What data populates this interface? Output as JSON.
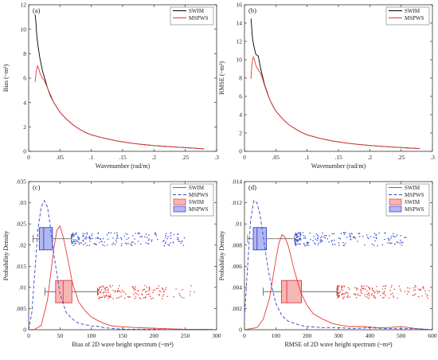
{
  "chart_data": [
    {
      "panel": "(a)",
      "type": "line",
      "xlabel": "Wavenumber (rad/m)",
      "ylabel": "Bias (~m³)",
      "xlim": [
        0,
        0.3
      ],
      "ylim": [
        0,
        12
      ],
      "xticks": [
        0,
        0.05,
        0.1,
        0.15,
        0.2,
        0.25,
        0.3
      ],
      "yticks": [
        0,
        2,
        4,
        6,
        8,
        10,
        12
      ],
      "legend": "top-right",
      "series": [
        {
          "name": "SWIM",
          "color": "#000000",
          "x": [
            0.0103,
            0.0115,
            0.013,
            0.015,
            0.018,
            0.022,
            0.026,
            0.03,
            0.035,
            0.04,
            0.045,
            0.05,
            0.06,
            0.07,
            0.08,
            0.09,
            0.1,
            0.12,
            0.14,
            0.16,
            0.18,
            0.2,
            0.22,
            0.24,
            0.26,
            0.28
          ],
          "y": [
            11.2,
            10.6,
            9.5,
            8.6,
            7.6,
            6.6,
            5.9,
            5.2,
            4.5,
            4.0,
            3.6,
            3.2,
            2.65,
            2.2,
            1.85,
            1.55,
            1.35,
            1.08,
            0.86,
            0.7,
            0.57,
            0.47,
            0.4,
            0.33,
            0.27,
            0.2
          ]
        },
        {
          "name": "MSPWS",
          "color": "#e53935",
          "x": [
            0.0103,
            0.012,
            0.014,
            0.016,
            0.018,
            0.02,
            0.022,
            0.025,
            0.03,
            0.035,
            0.04,
            0.045,
            0.05,
            0.06,
            0.07,
            0.08,
            0.09,
            0.1,
            0.12,
            0.14,
            0.16,
            0.18,
            0.2,
            0.22,
            0.24,
            0.26,
            0.28
          ],
          "y": [
            5.7,
            6.5,
            7.0,
            6.8,
            6.4,
            6.2,
            6.0,
            5.8,
            5.2,
            4.6,
            4.0,
            3.6,
            3.2,
            2.65,
            2.2,
            1.85,
            1.55,
            1.35,
            1.08,
            0.86,
            0.7,
            0.57,
            0.47,
            0.4,
            0.33,
            0.27,
            0.2
          ]
        }
      ]
    },
    {
      "panel": "(b)",
      "type": "line",
      "xlabel": "Wavenumber (rad/m)",
      "ylabel": "RMSE (~m³)",
      "xlim": [
        0,
        0.3
      ],
      "ylim": [
        0,
        16
      ],
      "xticks": [
        0,
        0.05,
        0.1,
        0.15,
        0.2,
        0.25,
        0.3
      ],
      "yticks": [
        0,
        2,
        4,
        6,
        8,
        10,
        12,
        14,
        16
      ],
      "legend": "top-right",
      "series": [
        {
          "name": "SWIM",
          "color": "#000000",
          "x": [
            0.0103,
            0.0115,
            0.013,
            0.015,
            0.018,
            0.022,
            0.025,
            0.028,
            0.032,
            0.036,
            0.04,
            0.045,
            0.05,
            0.06,
            0.07,
            0.08,
            0.09,
            0.1,
            0.12,
            0.14,
            0.16,
            0.18,
            0.2,
            0.22,
            0.24,
            0.26,
            0.28
          ],
          "y": [
            14.5,
            13.5,
            12.2,
            11.5,
            10.6,
            10.4,
            9.3,
            8.4,
            7.3,
            6.5,
            5.7,
            5.0,
            4.4,
            3.6,
            2.95,
            2.5,
            2.1,
            1.8,
            1.42,
            1.14,
            0.93,
            0.77,
            0.64,
            0.54,
            0.45,
            0.37,
            0.3
          ]
        },
        {
          "name": "MSPWS",
          "color": "#e53935",
          "x": [
            0.0103,
            0.012,
            0.014,
            0.016,
            0.018,
            0.02,
            0.022,
            0.025,
            0.028,
            0.032,
            0.036,
            0.04,
            0.045,
            0.05,
            0.06,
            0.07,
            0.08,
            0.09,
            0.1,
            0.12,
            0.14,
            0.16,
            0.18,
            0.2,
            0.22,
            0.24,
            0.26,
            0.28
          ],
          "y": [
            7.9,
            9.6,
            10.3,
            10.0,
            9.4,
            9.1,
            8.9,
            8.6,
            8.1,
            7.2,
            6.4,
            5.7,
            5.0,
            4.4,
            3.6,
            2.95,
            2.5,
            2.1,
            1.8,
            1.42,
            1.14,
            0.93,
            0.77,
            0.64,
            0.54,
            0.45,
            0.37,
            0.3
          ]
        }
      ]
    },
    {
      "panel": "(c)",
      "type": "line",
      "xlabel": "Bias of 2D wave height spectrum (~m⁴)",
      "ylabel": "Probability Density",
      "xlim": [
        0,
        300
      ],
      "ylim": [
        0,
        0.035
      ],
      "xticks": [
        0,
        50,
        100,
        150,
        200,
        250,
        300
      ],
      "yticks": [
        0,
        0.005,
        0.01,
        0.015,
        0.02,
        0.025,
        0.03,
        0.035
      ],
      "legend": "top-right",
      "series": [
        {
          "name": "SWIM",
          "color": "#e53935",
          "style": "solid",
          "x": [
            0,
            10,
            20,
            30,
            40,
            45,
            50,
            55,
            60,
            70,
            80,
            90,
            100,
            110,
            120,
            130,
            140,
            150,
            170,
            190,
            210,
            230,
            250,
            270,
            290,
            300
          ],
          "y": [
            0.0,
            0.0001,
            0.001,
            0.007,
            0.019,
            0.0235,
            0.0245,
            0.022,
            0.0185,
            0.011,
            0.0065,
            0.0045,
            0.003,
            0.0022,
            0.0015,
            0.001,
            0.0008,
            0.0007,
            0.0005,
            0.0004,
            0.0003,
            0.0002,
            0.0001,
            0.0001,
            0.0001,
            0.0
          ]
        },
        {
          "name": "MSPWS",
          "color": "#3344cc",
          "style": "dashed",
          "x": [
            0,
            5,
            10,
            15,
            20,
            25,
            30,
            35,
            40,
            50,
            60,
            70,
            80,
            90,
            100,
            110,
            120,
            140,
            160,
            200,
            250,
            300
          ],
          "y": [
            0.0,
            0.004,
            0.014,
            0.024,
            0.029,
            0.0305,
            0.029,
            0.024,
            0.018,
            0.0085,
            0.004,
            0.0025,
            0.0015,
            0.0012,
            0.0009,
            0.0008,
            0.0005,
            0.0002,
            0.0001,
            0.0001,
            0.0,
            0.0
          ]
        }
      ],
      "boxplots": [
        {
          "name": "SWIM",
          "color": "#e53935",
          "fill": "#f6b6b6",
          "y_level": 0.009,
          "whisker_low": 26,
          "q1": 43,
          "median": 55,
          "q3": 69,
          "whisker_high": 110,
          "scatter_range": [
            110,
            265
          ],
          "scatter_count": 150
        },
        {
          "name": "MSPWS",
          "color": "#3344cc",
          "fill": "#b3b8f2",
          "y_level": 0.0215,
          "whisker_low": 7,
          "q1": 17,
          "median": 24,
          "q3": 38,
          "whisker_high": 68,
          "scatter_range": [
            68,
            250
          ],
          "scatter_count": 180
        }
      ]
    },
    {
      "panel": "(d)",
      "type": "line",
      "xlabel": "RMSE of 2D wave height spectrum (~m⁴)",
      "ylabel": "Probability Density",
      "xlim": [
        0,
        600
      ],
      "ylim": [
        0,
        0.014
      ],
      "xticks": [
        0,
        100,
        200,
        300,
        400,
        500,
        600
      ],
      "yticks": [
        0,
        0.002,
        0.004,
        0.006,
        0.008,
        0.01,
        0.012,
        0.014
      ],
      "legend": "top-right",
      "series": [
        {
          "name": "SWIM",
          "color": "#e53935",
          "style": "solid",
          "x": [
            0,
            40,
            60,
            80,
            100,
            110,
            120,
            130,
            140,
            160,
            180,
            200,
            220,
            250,
            280,
            310,
            340,
            380,
            420,
            460,
            500,
            550,
            600
          ],
          "y": [
            0.0,
            0.0002,
            0.001,
            0.003,
            0.0066,
            0.0082,
            0.009,
            0.0087,
            0.0079,
            0.0055,
            0.0035,
            0.0023,
            0.0015,
            0.001,
            0.0006,
            0.0004,
            0.0003,
            0.0003,
            0.0002,
            0.0002,
            0.0003,
            0.0001,
            0.0
          ]
        },
        {
          "name": "MSPWS",
          "color": "#3344cc",
          "style": "dashed",
          "x": [
            0,
            10,
            20,
            30,
            40,
            50,
            60,
            70,
            80,
            100,
            120,
            140,
            160,
            180,
            200,
            250,
            300,
            350,
            400,
            450,
            500,
            550,
            600
          ],
          "y": [
            0.0012,
            0.006,
            0.0105,
            0.0122,
            0.012,
            0.0108,
            0.0088,
            0.0068,
            0.005,
            0.0025,
            0.0013,
            0.0008,
            0.0006,
            0.0004,
            0.0003,
            0.0002,
            0.0002,
            0.0001,
            0.0002,
            0.0001,
            0.0001,
            0.0001,
            0.0
          ]
        }
      ],
      "boxplots": [
        {
          "name": "SWIM",
          "color": "#e53935",
          "fill": "#f6b6b6",
          "y_level": 0.0036,
          "whisker_low": 60,
          "q1": 118,
          "median": 135,
          "q3": 182,
          "whisker_high": 295,
          "scatter_range": [
            295,
            600
          ],
          "scatter_count": 170
        },
        {
          "name": "MSPWS",
          "color": "#3344cc",
          "fill": "#b3b8f2",
          "y_level": 0.0086,
          "whisker_low": 10,
          "q1": 28,
          "median": 40,
          "q3": 70,
          "whisker_high": 160,
          "scatter_range": [
            160,
            520
          ],
          "scatter_count": 180
        }
      ]
    }
  ]
}
